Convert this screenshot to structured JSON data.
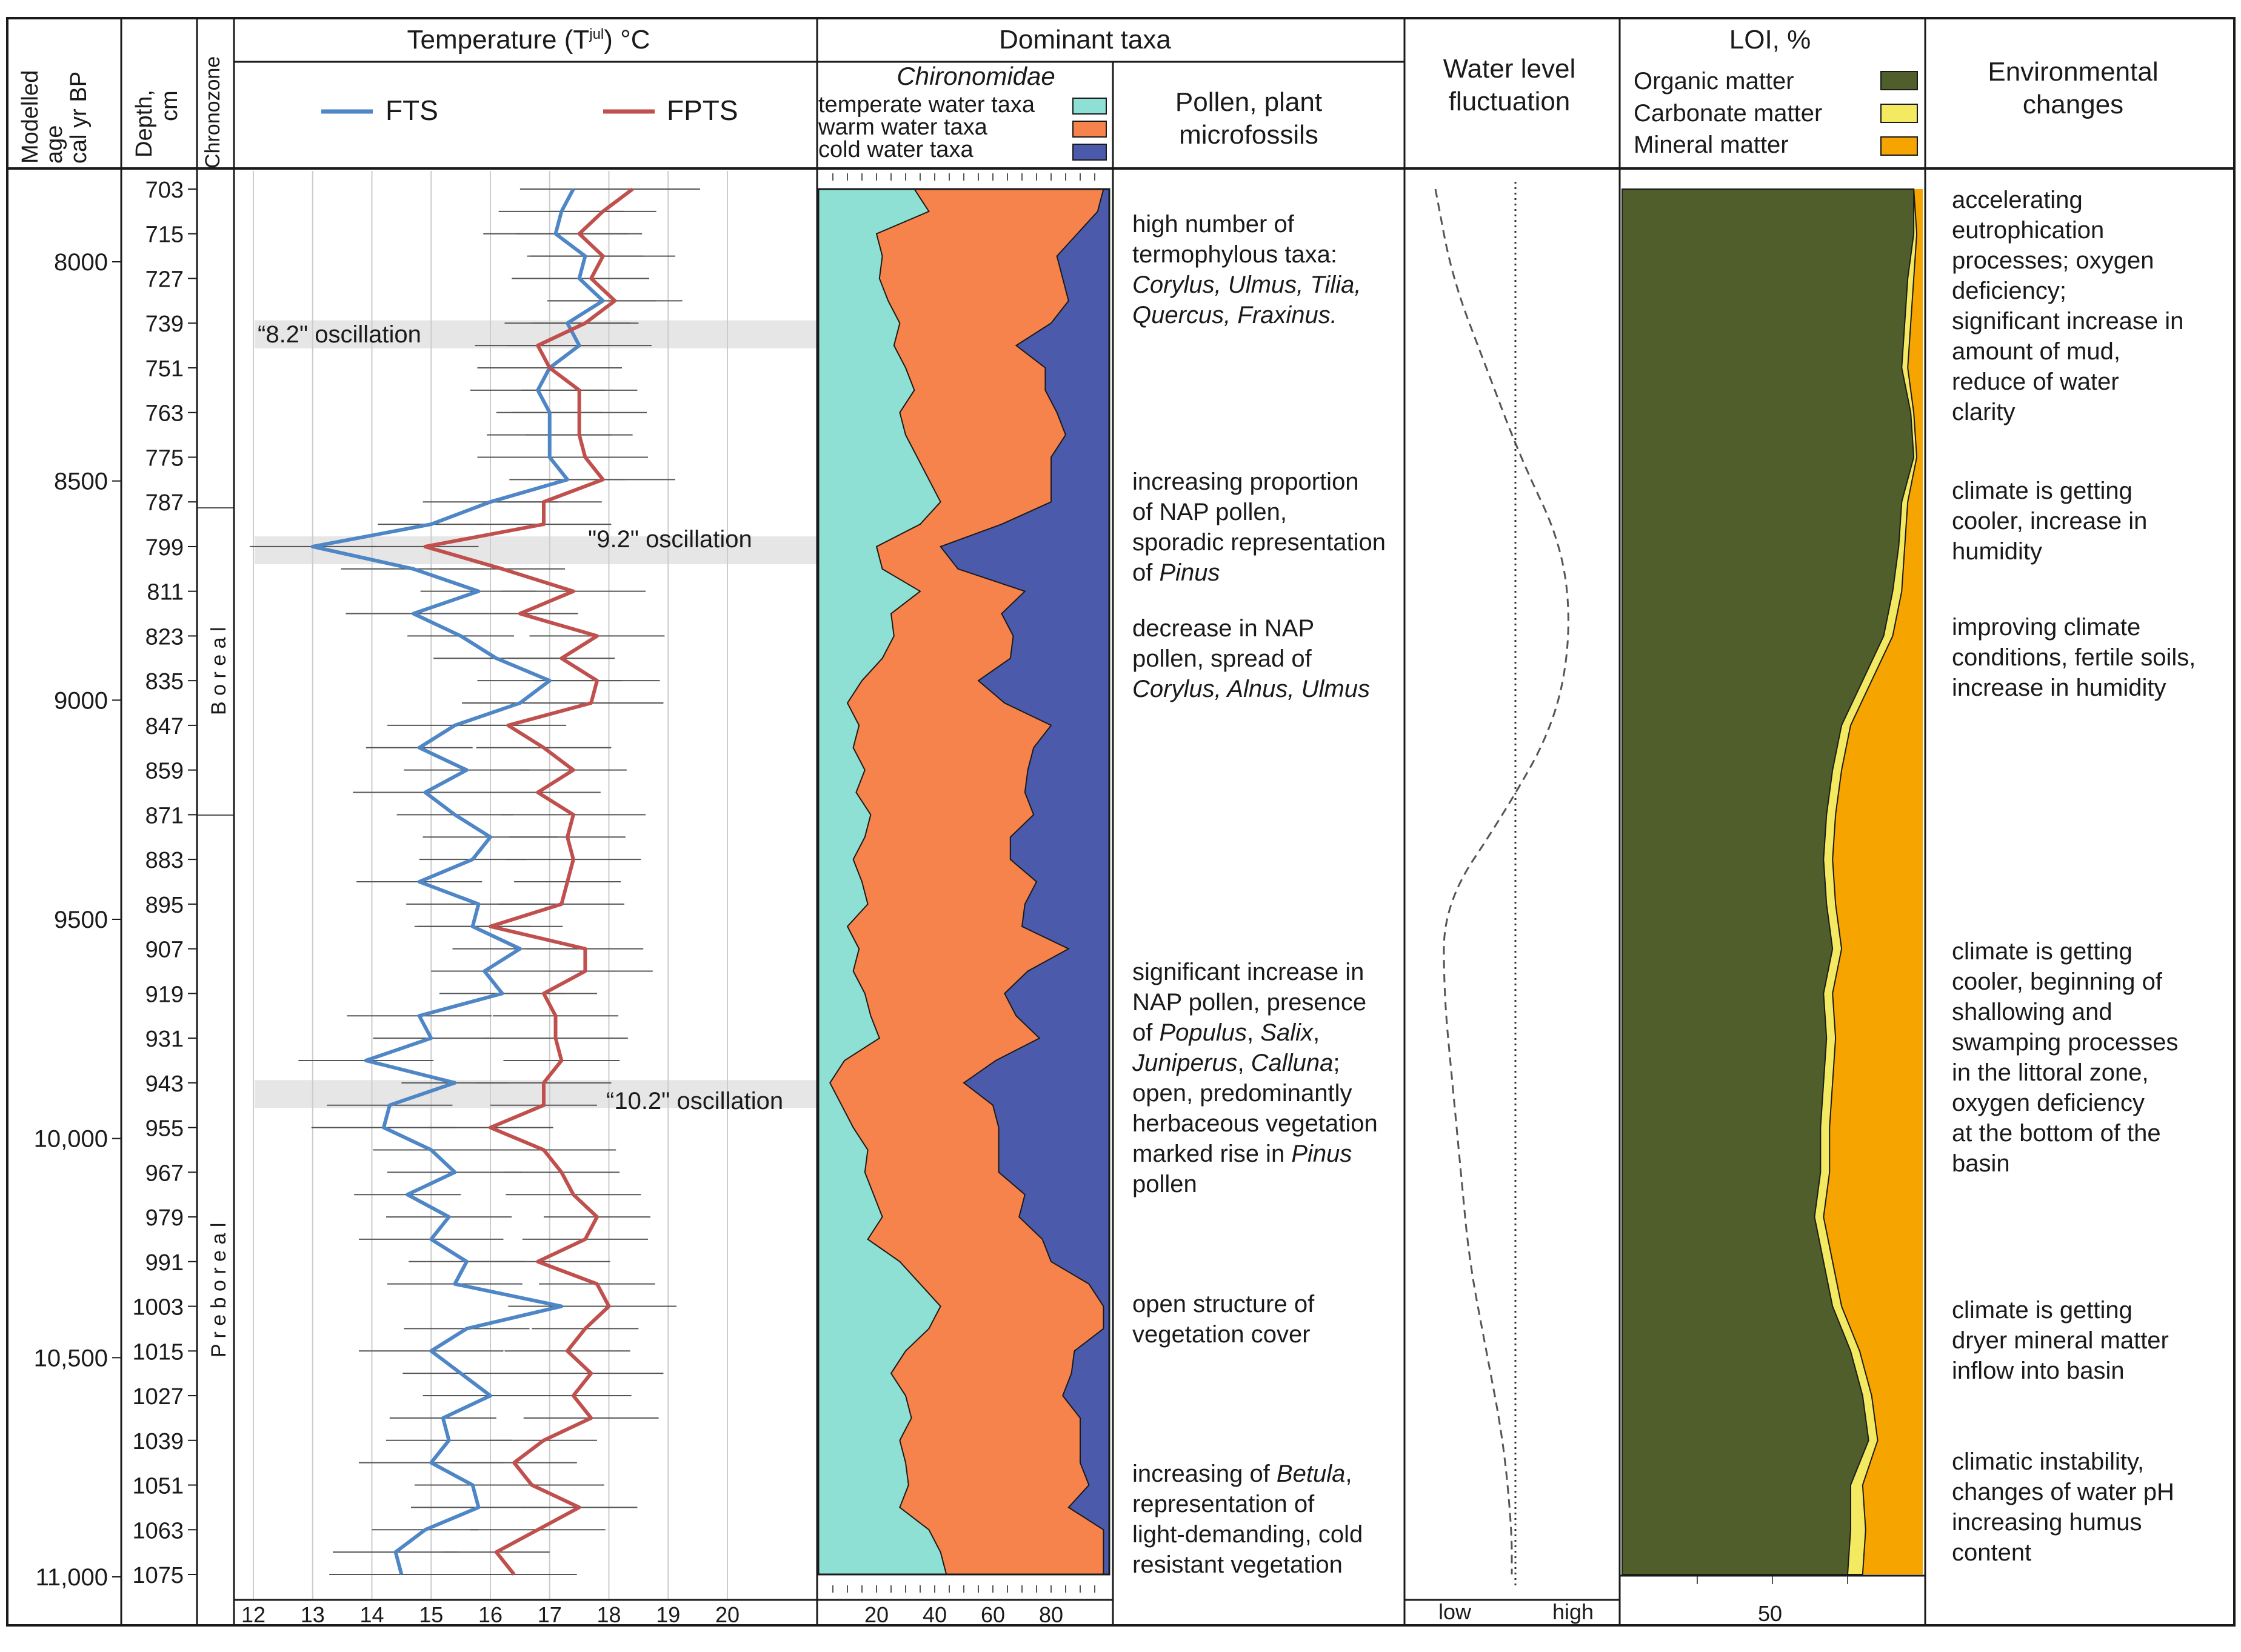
{
  "colors": {
    "fts": "#4e86c6",
    "fpts": "#c0504d",
    "temperate": "#8de0d3",
    "warm": "#f5834b",
    "cold": "#4b5aab",
    "organic": "#4f5e2b",
    "carbonate": "#f4ea62",
    "mineral": "#f5a400",
    "band": "#e6e6e6",
    "grid": "#cccccc",
    "errbar": "#555555"
  },
  "header": {
    "age_label": [
      "Modelled",
      "age",
      "cal yr BP"
    ],
    "depth_label": [
      "Depth,",
      "cm"
    ],
    "chronozone_label": "Chronozone",
    "temperature_title": "Temperature (T",
    "temperature_sup": "jul",
    "temperature_unit": ") °C",
    "legend_fts": "FTS",
    "legend_fpts": "FPTS",
    "dominant_taxa": "Dominant taxa",
    "chironomidae": "Chironomidae",
    "temperate_label": "temperate water taxa",
    "warm_label": "warm water taxa",
    "cold_label": "cold water taxa",
    "pollen_title": [
      "Pollen, plant",
      "microfossils"
    ],
    "water_title": [
      "Water level",
      "fluctuation"
    ],
    "loi_title": "LOI, %",
    "organic_label": "Organic matter",
    "carbonate_label": "Carbonate matter",
    "mineral_label": "Mineral matter",
    "env_title": [
      "Environmental",
      "changes"
    ]
  },
  "chronozones": {
    "boreal": "B o r e a l",
    "preboreal": "P r e b o r e a l"
  },
  "axes": {
    "age_ticks": [
      "8000",
      "8500",
      "9000",
      "9500",
      "10,000",
      "10,500",
      "11,000"
    ],
    "depth_ticks": [
      "703",
      "715",
      "727",
      "739",
      "751",
      "763",
      "775",
      "787",
      "799",
      "811",
      "823",
      "835",
      "847",
      "859",
      "871",
      "883",
      "895",
      "907",
      "919",
      "931",
      "943",
      "955",
      "967",
      "979",
      "991",
      "1003",
      "1015",
      "1027",
      "1039",
      "1051",
      "1063",
      "1075"
    ],
    "temp_ticks": [
      "12",
      "13",
      "14",
      "15",
      "16",
      "17",
      "18",
      "19",
      "20"
    ],
    "taxa_ticks": [
      "20",
      "40",
      "60",
      "80"
    ],
    "water_low": "low",
    "water_high": "high",
    "loi_tick": "50"
  },
  "oscillations": [
    "“8.2\" oscillation",
    "\"9.2\" oscillation",
    "“10.2\" oscillation"
  ],
  "pollen_notes": [
    {
      "lines": [
        {
          "segs": [
            {
              "t": "high number of"
            }
          ]
        },
        {
          "segs": [
            {
              "t": "termophylous taxa:"
            }
          ]
        },
        {
          "segs": [
            {
              "t": "Corylus, Ulmus, Tilia,",
              "i": true
            }
          ]
        },
        {
          "segs": [
            {
              "t": "Quercus, Fraxinus.",
              "i": true
            }
          ]
        }
      ]
    },
    {
      "lines": [
        {
          "segs": [
            {
              "t": "increasing proportion"
            }
          ]
        },
        {
          "segs": [
            {
              "t": "of NAP pollen,"
            }
          ]
        },
        {
          "segs": [
            {
              "t": "sporadic representation"
            }
          ]
        },
        {
          "segs": [
            {
              "t": "of "
            },
            {
              "t": "Pinus",
              "i": true
            }
          ]
        }
      ]
    },
    {
      "lines": [
        {
          "segs": [
            {
              "t": "decrease in NAP"
            }
          ]
        },
        {
          "segs": [
            {
              "t": "pollen, spread of"
            }
          ]
        },
        {
          "segs": [
            {
              "t": "Corylus, Alnus, Ulmus",
              "i": true
            }
          ]
        }
      ]
    },
    {
      "lines": [
        {
          "segs": [
            {
              "t": "significant increase in"
            }
          ]
        },
        {
          "segs": [
            {
              "t": "NAP pollen, presence"
            }
          ]
        },
        {
          "segs": [
            {
              "t": "of "
            },
            {
              "t": "Populus",
              "i": true
            },
            {
              "t": ", "
            },
            {
              "t": "Salix",
              "i": true
            },
            {
              "t": ","
            }
          ]
        },
        {
          "segs": [
            {
              "t": "Juniperus",
              "i": true
            },
            {
              "t": ", "
            },
            {
              "t": "Calluna",
              "i": true
            },
            {
              "t": ";"
            }
          ]
        },
        {
          "segs": [
            {
              "t": "open, predominantly"
            }
          ]
        },
        {
          "segs": [
            {
              "t": "herbaceous vegetation"
            }
          ]
        },
        {
          "segs": [
            {
              "t": "marked rise in "
            },
            {
              "t": "Pinus",
              "i": true
            }
          ]
        },
        {
          "segs": [
            {
              "t": "pollen"
            }
          ]
        }
      ]
    },
    {
      "lines": [
        {
          "segs": [
            {
              "t": "open structure of"
            }
          ]
        },
        {
          "segs": [
            {
              "t": "vegetation cover"
            }
          ]
        }
      ]
    },
    {
      "lines": [
        {
          "segs": [
            {
              "t": "increasing of "
            },
            {
              "t": "Betula",
              "i": true
            },
            {
              "t": ","
            }
          ]
        },
        {
          "segs": [
            {
              "t": "representation of"
            }
          ]
        },
        {
          "segs": [
            {
              "t": "light-demanding, cold"
            }
          ]
        },
        {
          "segs": [
            {
              "t": "resistant vegetation"
            }
          ]
        }
      ]
    }
  ],
  "env_notes": [
    [
      "accelerating",
      "eutrophication",
      "processes; oxygen",
      "deficiency;",
      "significant increase in",
      "amount of mud,",
      "reduce of water",
      "clarity"
    ],
    [
      "climate is getting",
      "cooler, increase in",
      "humidity"
    ],
    [
      "improving climate",
      "conditions, fertile soils,",
      "increase in humidity"
    ],
    [
      "climate is getting",
      "cooler, beginning of",
      "shallowing and",
      "swamping processes",
      "in the littoral zone,",
      "oxygen deficiency",
      "at the bottom of the",
      "basin"
    ],
    [
      "climate is getting",
      "dryer mineral matter",
      "inflow into basin"
    ],
    [
      "climatic instability,",
      "changes of water pH",
      "increasing humus",
      "content"
    ]
  ],
  "chart_data": [
    {
      "type": "line",
      "title": "Temperature (Tjul) °C",
      "xlabel": "Temperature (Tjul) °C",
      "ylabel": "Depth, cm",
      "xlim": [
        12,
        20.5
      ],
      "ylim": [
        1075,
        703
      ],
      "depth": [
        703,
        709,
        715,
        721,
        727,
        733,
        739,
        745,
        751,
        757,
        763,
        769,
        775,
        781,
        787,
        793,
        799,
        805,
        811,
        817,
        823,
        829,
        835,
        841,
        847,
        853,
        859,
        865,
        871,
        877,
        883,
        889,
        895,
        901,
        907,
        913,
        919,
        925,
        931,
        937,
        943,
        949,
        955,
        961,
        967,
        973,
        979,
        985,
        991,
        997,
        1003,
        1009,
        1015,
        1021,
        1027,
        1033,
        1039,
        1045,
        1051,
        1057,
        1063,
        1069,
        1075
      ],
      "series": [
        {
          "name": "FTS",
          "values": [
            17.4,
            17.2,
            17.1,
            17.6,
            17.5,
            17.9,
            17.3,
            17.5,
            17.0,
            16.8,
            17.0,
            17.0,
            17.0,
            17.3,
            16.0,
            15.0,
            13.0,
            14.7,
            15.8,
            14.7,
            15.5,
            16.1,
            17.0,
            16.5,
            15.4,
            14.8,
            15.6,
            14.9,
            15.4,
            16.0,
            15.7,
            14.8,
            15.8,
            15.7,
            16.5,
            15.9,
            16.2,
            14.8,
            15.0,
            13.9,
            15.4,
            14.3,
            14.2,
            15.0,
            15.4,
            14.6,
            15.3,
            15.0,
            15.6,
            15.4,
            17.2,
            15.6,
            15.0,
            15.5,
            16.0,
            15.2,
            15.3,
            15.0,
            15.7,
            15.8,
            14.9,
            14.4,
            14.5
          ]
        },
        {
          "name": "FPTS",
          "values": [
            18.4,
            17.9,
            17.5,
            17.9,
            17.7,
            18.1,
            17.6,
            16.8,
            17.0,
            17.5,
            17.5,
            17.5,
            17.6,
            17.9,
            16.9,
            16.9,
            14.9,
            16.2,
            17.4,
            16.5,
            17.8,
            17.2,
            17.8,
            17.7,
            16.3,
            16.9,
            17.4,
            16.8,
            17.4,
            17.3,
            17.4,
            17.3,
            17.2,
            16.0,
            17.6,
            17.6,
            16.9,
            17.1,
            17.1,
            17.2,
            16.9,
            16.9,
            16.0,
            16.9,
            17.2,
            17.4,
            17.8,
            17.6,
            16.8,
            17.8,
            18.0,
            17.6,
            17.3,
            17.7,
            17.4,
            17.7,
            16.9,
            16.4,
            16.7,
            17.5,
            16.8,
            16.1,
            16.4
          ]
        }
      ],
      "annotations": [
        "“8.2\" oscillation",
        "\"9.2\" oscillation",
        "“10.2\" oscillation"
      ]
    },
    {
      "type": "area",
      "title": "Dominant taxa — Chironomidae",
      "xlabel": "%",
      "xlim": [
        0,
        100
      ],
      "ylim": [
        1075,
        703
      ],
      "depth": [
        703,
        709,
        715,
        721,
        727,
        733,
        739,
        745,
        751,
        757,
        763,
        769,
        775,
        781,
        787,
        793,
        799,
        805,
        811,
        817,
        823,
        829,
        835,
        841,
        847,
        853,
        859,
        865,
        871,
        877,
        883,
        889,
        895,
        901,
        907,
        913,
        919,
        925,
        931,
        937,
        943,
        949,
        955,
        961,
        967,
        973,
        979,
        985,
        991,
        997,
        1003,
        1009,
        1015,
        1021,
        1027,
        1033,
        1039,
        1045,
        1051,
        1057,
        1063,
        1069,
        1075
      ],
      "series": [
        {
          "name": "temperate water taxa",
          "values": [
            33,
            38,
            20,
            22,
            21,
            24,
            28,
            26,
            30,
            33,
            28,
            30,
            34,
            38,
            42,
            35,
            20,
            22,
            35,
            25,
            26,
            22,
            15,
            10,
            14,
            12,
            16,
            13,
            18,
            16,
            12,
            15,
            17,
            10,
            14,
            12,
            16,
            18,
            21,
            9,
            4,
            8,
            12,
            17,
            16,
            19,
            22,
            17,
            28,
            35,
            42,
            38,
            30,
            25,
            30,
            32,
            28,
            30,
            31,
            28,
            38,
            42,
            44
          ]
        },
        {
          "name": "warm water taxa",
          "values": [
            65,
            58,
            69,
            60,
            63,
            62,
            52,
            42,
            48,
            45,
            54,
            55,
            46,
            42,
            38,
            28,
            22,
            26,
            36,
            38,
            41,
            44,
            40,
            54,
            66,
            62,
            56,
            58,
            56,
            50,
            54,
            60,
            54,
            60,
            72,
            60,
            48,
            50,
            55,
            52,
            46,
            52,
            50,
            45,
            46,
            52,
            47,
            60,
            52,
            58,
            67,
            60,
            58,
            62,
            54,
            58,
            62,
            60,
            62,
            58,
            60,
            58,
            64
          ]
        },
        {
          "name": "cold water taxa",
          "values": [
            2,
            4,
            11,
            18,
            16,
            14,
            20,
            32,
            22,
            22,
            18,
            15,
            20,
            20,
            20,
            37,
            58,
            52,
            29,
            37,
            33,
            34,
            45,
            36,
            20,
            26,
            28,
            29,
            26,
            34,
            34,
            25,
            29,
            30,
            14,
            28,
            36,
            32,
            24,
            39,
            50,
            40,
            38,
            38,
            38,
            29,
            31,
            23,
            20,
            7,
            -9,
            2,
            12,
            13,
            16,
            10,
            10,
            10,
            7,
            14,
            2,
            0,
            -8
          ]
        }
      ]
    },
    {
      "type": "line",
      "title": "Water level fluctuation",
      "xlabel": "Water level fluctuation (low – high)",
      "ylim": [
        1075,
        703
      ],
      "depth": [
        703,
        727,
        751,
        775,
        799,
        823,
        847,
        871,
        895,
        919,
        943,
        967,
        991,
        1015,
        1039,
        1063,
        1075
      ],
      "series": [
        {
          "name": "",
          "values": [
            0.1,
            0.2,
            0.4,
            0.6,
            0.85,
            0.9,
            0.8,
            0.5,
            0.15,
            0.15,
            0.2,
            0.25,
            0.3,
            0.4,
            0.5,
            0.55,
            0.55
          ]
        }
      ]
    },
    {
      "type": "area",
      "title": "LOI, %",
      "xlabel": "LOI, %",
      "xlim": [
        0,
        100
      ],
      "ylim": [
        1075,
        703
      ],
      "depth": [
        703,
        715,
        727,
        739,
        751,
        763,
        775,
        787,
        799,
        811,
        823,
        835,
        847,
        859,
        871,
        883,
        895,
        907,
        919,
        931,
        943,
        955,
        967,
        979,
        991,
        1003,
        1015,
        1027,
        1039,
        1051,
        1063,
        1075
      ],
      "series": [
        {
          "name": "Organic matter",
          "values": [
            97,
            97,
            95,
            94,
            93,
            96,
            97,
            93,
            92,
            90,
            87,
            80,
            73,
            70,
            68,
            67,
            68,
            70,
            67,
            68,
            67,
            66,
            66,
            64,
            67,
            70,
            76,
            80,
            82,
            76,
            76,
            75
          ]
        },
        {
          "name": "Carbonate matter",
          "values": [
            0,
            1,
            2,
            2,
            2,
            1,
            1,
            2,
            2,
            3,
            3,
            3,
            3,
            3,
            3,
            3,
            3,
            3,
            3,
            3,
            3,
            3,
            3,
            3,
            3,
            3,
            3,
            3,
            3,
            4,
            5,
            5
          ]
        },
        {
          "name": "Mineral matter",
          "values": [
            3,
            2,
            3,
            4,
            5,
            3,
            2,
            5,
            6,
            7,
            10,
            17,
            24,
            27,
            29,
            30,
            29,
            27,
            30,
            29,
            30,
            31,
            31,
            33,
            30,
            27,
            21,
            17,
            15,
            20,
            19,
            20
          ]
        }
      ]
    }
  ]
}
